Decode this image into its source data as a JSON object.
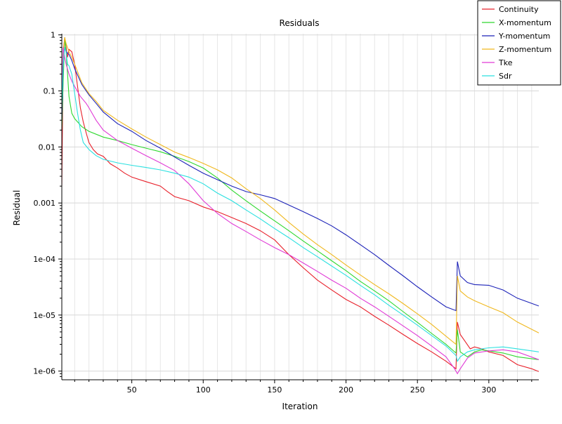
{
  "chart_data": {
    "type": "line",
    "title": "Residuals",
    "xlabel": "Iteration",
    "ylabel": "Residual",
    "xlim": [
      1,
      335
    ],
    "ylim": [
      7e-07,
      1.05
    ],
    "y_scale": "log",
    "grid": true,
    "legend_position": "top-right",
    "x_ticks": [
      50,
      100,
      150,
      200,
      250,
      300
    ],
    "y_ticks": [
      1,
      0.1,
      0.01,
      0.001,
      0.0001,
      1e-05,
      1e-06
    ],
    "y_tick_labels": [
      "1",
      "0.1",
      "0.01",
      "0.001",
      "1e-04",
      "1e-05",
      "1e-06"
    ],
    "series": [
      {
        "name": "Continuity",
        "color": "#e8202a",
        "points": [
          [
            1,
            0.002
          ],
          [
            2,
            0.5
          ],
          [
            3,
            0.9
          ],
          [
            4,
            0.6
          ],
          [
            5,
            0.4
          ],
          [
            6,
            0.55
          ],
          [
            8,
            0.5
          ],
          [
            10,
            0.3
          ],
          [
            12,
            0.12
          ],
          [
            14,
            0.05
          ],
          [
            16,
            0.028
          ],
          [
            18,
            0.018
          ],
          [
            20,
            0.012
          ],
          [
            23,
            0.009
          ],
          [
            26,
            0.0075
          ],
          [
            30,
            0.0068
          ],
          [
            35,
            0.005
          ],
          [
            40,
            0.0042
          ],
          [
            45,
            0.0034
          ],
          [
            50,
            0.0029
          ],
          [
            60,
            0.0024
          ],
          [
            70,
            0.002
          ],
          [
            75,
            0.0016
          ],
          [
            80,
            0.0013
          ],
          [
            90,
            0.0011
          ],
          [
            100,
            0.00085
          ],
          [
            110,
            0.0007
          ],
          [
            120,
            0.00055
          ],
          [
            130,
            0.00043
          ],
          [
            140,
            0.00032
          ],
          [
            150,
            0.00022
          ],
          [
            160,
            0.00012
          ],
          [
            170,
            7e-05
          ],
          [
            180,
            4.2e-05
          ],
          [
            190,
            2.8e-05
          ],
          [
            200,
            1.9e-05
          ],
          [
            210,
            1.4e-05
          ],
          [
            220,
            9.5e-06
          ],
          [
            230,
            6.6e-06
          ],
          [
            240,
            4.5e-06
          ],
          [
            250,
            3.1e-06
          ],
          [
            260,
            2.2e-06
          ],
          [
            270,
            1.5e-06
          ],
          [
            277,
            1.1e-06
          ],
          [
            278,
            7.5e-06
          ],
          [
            280,
            4.5e-06
          ],
          [
            283,
            3.5e-06
          ],
          [
            287,
            2.5e-06
          ],
          [
            290,
            2.7e-06
          ],
          [
            295,
            2.5e-06
          ],
          [
            300,
            2.2e-06
          ],
          [
            310,
            1.9e-06
          ],
          [
            320,
            1.3e-06
          ],
          [
            330,
            1.1e-06
          ],
          [
            335,
            9.8e-07
          ]
        ]
      },
      {
        "name": "X-momentum",
        "color": "#2ed82e",
        "points": [
          [
            1,
            0.02
          ],
          [
            2,
            0.15
          ],
          [
            3,
            0.9
          ],
          [
            4,
            0.5
          ],
          [
            6,
            0.08
          ],
          [
            8,
            0.04
          ],
          [
            10,
            0.032
          ],
          [
            15,
            0.023
          ],
          [
            20,
            0.019
          ],
          [
            30,
            0.015
          ],
          [
            40,
            0.013
          ],
          [
            50,
            0.011
          ],
          [
            60,
            0.0095
          ],
          [
            70,
            0.0082
          ],
          [
            80,
            0.0068
          ],
          [
            90,
            0.0055
          ],
          [
            100,
            0.0042
          ],
          [
            110,
            0.0028
          ],
          [
            120,
            0.0017
          ],
          [
            130,
            0.0011
          ],
          [
            140,
            0.00072
          ],
          [
            150,
            0.00048
          ],
          [
            160,
            0.00032
          ],
          [
            170,
            0.00021
          ],
          [
            180,
            0.00014
          ],
          [
            190,
            9.3e-05
          ],
          [
            200,
            6.2e-05
          ],
          [
            210,
            4e-05
          ],
          [
            220,
            2.7e-05
          ],
          [
            230,
            1.8e-05
          ],
          [
            240,
            1.15e-05
          ],
          [
            250,
            7.4e-06
          ],
          [
            260,
            4.7e-06
          ],
          [
            270,
            3e-06
          ],
          [
            277,
            2.1e-06
          ],
          [
            278,
            5.5e-06
          ],
          [
            280,
            2.2e-06
          ],
          [
            285,
            1.8e-06
          ],
          [
            290,
            2.2e-06
          ],
          [
            295,
            2.4e-06
          ],
          [
            300,
            2.3e-06
          ],
          [
            310,
            2.1e-06
          ],
          [
            320,
            1.8e-06
          ],
          [
            335,
            1.6e-06
          ]
        ]
      },
      {
        "name": "Y-momentum",
        "color": "#1c22b8",
        "points": [
          [
            1,
            0.03
          ],
          [
            2,
            0.3
          ],
          [
            3,
            0.6
          ],
          [
            4,
            0.5
          ],
          [
            6,
            0.45
          ],
          [
            8,
            0.35
          ],
          [
            10,
            0.25
          ],
          [
            15,
            0.13
          ],
          [
            20,
            0.085
          ],
          [
            25,
            0.06
          ],
          [
            30,
            0.042
          ],
          [
            40,
            0.026
          ],
          [
            50,
            0.019
          ],
          [
            60,
            0.013
          ],
          [
            70,
            0.0095
          ],
          [
            80,
            0.0066
          ],
          [
            90,
            0.0047
          ],
          [
            100,
            0.0034
          ],
          [
            110,
            0.0026
          ],
          [
            120,
            0.002
          ],
          [
            130,
            0.0016
          ],
          [
            140,
            0.0014
          ],
          [
            150,
            0.0012
          ],
          [
            160,
            0.00092
          ],
          [
            170,
            0.0007
          ],
          [
            180,
            0.00053
          ],
          [
            190,
            0.00039
          ],
          [
            200,
            0.00027
          ],
          [
            210,
            0.00018
          ],
          [
            220,
            0.00012
          ],
          [
            230,
            7.7e-05
          ],
          [
            240,
            5e-05
          ],
          [
            250,
            3.2e-05
          ],
          [
            260,
            2.1e-05
          ],
          [
            270,
            1.4e-05
          ],
          [
            277,
            1.2e-05
          ],
          [
            278,
            9e-05
          ],
          [
            280,
            5e-05
          ],
          [
            285,
            3.8e-05
          ],
          [
            290,
            3.5e-05
          ],
          [
            300,
            3.4e-05
          ],
          [
            310,
            2.8e-05
          ],
          [
            320,
            2e-05
          ],
          [
            335,
            1.45e-05
          ]
        ]
      },
      {
        "name": "Z-momentum",
        "color": "#f0b81e",
        "points": [
          [
            1,
            0.05
          ],
          [
            2,
            0.4
          ],
          [
            3,
            0.9
          ],
          [
            4,
            0.7
          ],
          [
            6,
            0.5
          ],
          [
            8,
            0.4
          ],
          [
            10,
            0.3
          ],
          [
            15,
            0.14
          ],
          [
            20,
            0.09
          ],
          [
            25,
            0.065
          ],
          [
            30,
            0.045
          ],
          [
            40,
            0.03
          ],
          [
            50,
            0.021
          ],
          [
            60,
            0.015
          ],
          [
            70,
            0.011
          ],
          [
            80,
            0.0081
          ],
          [
            90,
            0.0065
          ],
          [
            100,
            0.0051
          ],
          [
            110,
            0.0039
          ],
          [
            120,
            0.0028
          ],
          [
            130,
            0.0018
          ],
          [
            140,
            0.0012
          ],
          [
            150,
            0.00075
          ],
          [
            160,
            0.00045
          ],
          [
            170,
            0.00028
          ],
          [
            180,
            0.00018
          ],
          [
            190,
            0.00012
          ],
          [
            200,
            7.8e-05
          ],
          [
            210,
            5.2e-05
          ],
          [
            220,
            3.5e-05
          ],
          [
            230,
            2.4e-05
          ],
          [
            240,
            1.6e-05
          ],
          [
            250,
            1.05e-05
          ],
          [
            260,
            6.8e-06
          ],
          [
            270,
            4.2e-06
          ],
          [
            277,
            3e-06
          ],
          [
            278,
            5e-05
          ],
          [
            280,
            2.7e-05
          ],
          [
            285,
            2.1e-05
          ],
          [
            290,
            1.8e-05
          ],
          [
            300,
            1.4e-05
          ],
          [
            310,
            1.1e-05
          ],
          [
            320,
            7.5e-06
          ],
          [
            335,
            4.8e-06
          ]
        ]
      },
      {
        "name": "Tke",
        "color": "#e03ad6",
        "points": [
          [
            1,
            0.1
          ],
          [
            2,
            0.6
          ],
          [
            3,
            0.4
          ],
          [
            4,
            0.3
          ],
          [
            6,
            0.2
          ],
          [
            8,
            0.15
          ],
          [
            10,
            0.12
          ],
          [
            14,
            0.08
          ],
          [
            18,
            0.06
          ],
          [
            20,
            0.05
          ],
          [
            25,
            0.03
          ],
          [
            30,
            0.02
          ],
          [
            40,
            0.013
          ],
          [
            50,
            0.0095
          ],
          [
            60,
            0.007
          ],
          [
            70,
            0.0052
          ],
          [
            80,
            0.0038
          ],
          [
            90,
            0.0022
          ],
          [
            100,
            0.0011
          ],
          [
            110,
            0.00065
          ],
          [
            120,
            0.00043
          ],
          [
            130,
            0.00031
          ],
          [
            140,
            0.00022
          ],
          [
            150,
            0.00016
          ],
          [
            160,
            0.00012
          ],
          [
            170,
            8.5e-05
          ],
          [
            180,
            6e-05
          ],
          [
            190,
            4.2e-05
          ],
          [
            200,
            3e-05
          ],
          [
            210,
            2e-05
          ],
          [
            220,
            1.4e-05
          ],
          [
            230,
            9.5e-06
          ],
          [
            240,
            6.4e-06
          ],
          [
            250,
            4.3e-06
          ],
          [
            260,
            2.8e-06
          ],
          [
            270,
            1.8e-06
          ],
          [
            276,
            1.1e-06
          ],
          [
            278,
            9e-07
          ],
          [
            280,
            1.1e-06
          ],
          [
            285,
            1.7e-06
          ],
          [
            290,
            2.1e-06
          ],
          [
            300,
            2.3e-06
          ],
          [
            310,
            2.4e-06
          ],
          [
            320,
            2.2e-06
          ],
          [
            335,
            1.6e-06
          ]
        ]
      },
      {
        "name": "Sdr",
        "color": "#2ae0e0",
        "points": [
          [
            1,
            0.05
          ],
          [
            2,
            0.3
          ],
          [
            3,
            0.6
          ],
          [
            4,
            0.5
          ],
          [
            5,
            0.3
          ],
          [
            6,
            0.28
          ],
          [
            8,
            0.2
          ],
          [
            10,
            0.09
          ],
          [
            12,
            0.04
          ],
          [
            14,
            0.02
          ],
          [
            16,
            0.012
          ],
          [
            20,
            0.009
          ],
          [
            25,
            0.007
          ],
          [
            30,
            0.006
          ],
          [
            40,
            0.0052
          ],
          [
            50,
            0.0047
          ],
          [
            60,
            0.0043
          ],
          [
            70,
            0.0039
          ],
          [
            80,
            0.0034
          ],
          [
            90,
            0.0029
          ],
          [
            100,
            0.0022
          ],
          [
            110,
            0.0015
          ],
          [
            120,
            0.0011
          ],
          [
            130,
            0.00075
          ],
          [
            140,
            0.00052
          ],
          [
            150,
            0.00035
          ],
          [
            160,
            0.00024
          ],
          [
            170,
            0.00016
          ],
          [
            180,
            0.00011
          ],
          [
            190,
            7.5e-05
          ],
          [
            200,
            5.1e-05
          ],
          [
            210,
            3.4e-05
          ],
          [
            220,
            2.3e-05
          ],
          [
            230,
            1.5e-05
          ],
          [
            240,
            1e-05
          ],
          [
            250,
            6.6e-06
          ],
          [
            260,
            4.3e-06
          ],
          [
            270,
            2.8e-06
          ],
          [
            277,
            1.9e-06
          ],
          [
            278,
            1.5e-06
          ],
          [
            280,
            1.8e-06
          ],
          [
            285,
            2.2e-06
          ],
          [
            290,
            2.4e-06
          ],
          [
            300,
            2.6e-06
          ],
          [
            310,
            2.7e-06
          ],
          [
            320,
            2.5e-06
          ],
          [
            335,
            2.2e-06
          ]
        ]
      }
    ]
  }
}
